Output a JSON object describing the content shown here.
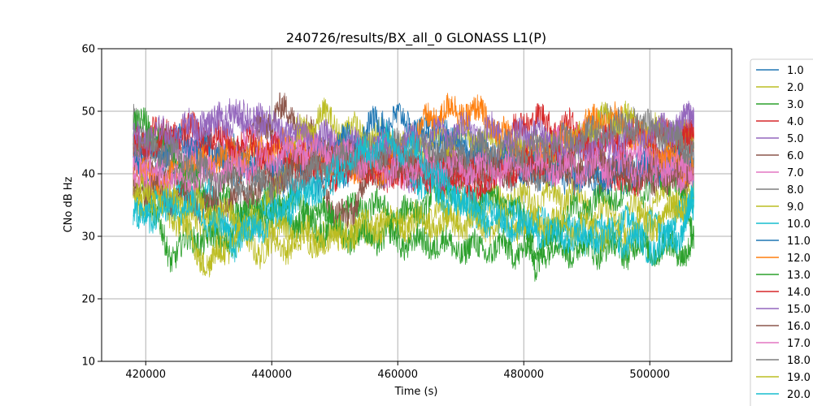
{
  "chart_data": {
    "type": "line",
    "title": "240726/results/BX_all_0 GLONASS L1(P)",
    "xlabel": "Time (s)",
    "ylabel": "CNo dB Hz",
    "xlim": [
      413000,
      513000
    ],
    "ylim": [
      10,
      60
    ],
    "xticks": [
      420000,
      440000,
      460000,
      480000,
      500000
    ],
    "yticks": [
      10,
      20,
      30,
      40,
      50,
      60
    ],
    "grid": true,
    "legend_position": "right-outside",
    "series": [
      {
        "name": "1.0",
        "color": "#1f77b4",
        "x": [
          418000,
          424000,
          430000,
          436000,
          442000,
          448000,
          454000,
          460000,
          466000,
          472000,
          478000,
          484000,
          490000,
          496000,
          502000,
          507000
        ],
        "y": [
          40,
          41,
          43,
          40,
          38,
          39,
          42,
          45,
          47,
          44,
          41,
          40,
          39,
          40,
          41,
          42
        ]
      },
      {
        "name": "2.0",
        "color": "#bcbd22",
        "x": [
          418000,
          423000,
          428000,
          433000,
          438000,
          443000,
          448000,
          453000,
          458000,
          463000,
          468000,
          473000,
          478000,
          483000,
          488000,
          493000,
          498000,
          503000,
          507000
        ],
        "y": [
          36,
          37,
          33,
          30,
          28,
          29,
          30,
          31,
          32,
          33,
          34,
          35,
          36,
          36,
          37,
          33,
          34,
          37,
          35
        ]
      },
      {
        "name": "3.0",
        "color": "#2ca02c",
        "x": [
          418000,
          421000,
          424000,
          428000,
          432000,
          436000,
          440000,
          444000,
          448000,
          452000,
          456000,
          460000,
          464000,
          468000,
          472000,
          476000,
          480000,
          482000,
          485000,
          490000,
          495000,
          500000,
          504000,
          507000
        ],
        "y": [
          47,
          34,
          27,
          30,
          29,
          33,
          36,
          35,
          33,
          34,
          35,
          33,
          35,
          38,
          37,
          36,
          33,
          25,
          32,
          35,
          37,
          38,
          40,
          30
        ]
      },
      {
        "name": "4.0",
        "color": "#d62728",
        "x": [
          418000,
          422000,
          426000,
          430000,
          434000,
          438000,
          442000,
          446000,
          450000,
          454000,
          458000,
          462000,
          466000,
          470000,
          474000,
          477000,
          480000,
          484000,
          488000,
          492000,
          496000,
          500000,
          504000,
          507000
        ],
        "y": [
          45,
          46,
          46,
          44,
          42,
          41,
          40,
          41,
          40,
          41,
          40,
          40,
          40,
          39,
          37,
          44,
          49,
          48,
          47,
          42,
          38,
          41,
          44,
          46
        ]
      },
      {
        "name": "5.0",
        "color": "#9467bd",
        "x": [
          418000,
          422000,
          426000,
          430000,
          434000,
          438000,
          442000,
          446000,
          450000,
          454000,
          458000,
          462000,
          466000,
          470000,
          474000,
          478000,
          482000,
          486000,
          490000,
          494000,
          498000,
          502000,
          505000,
          507000
        ],
        "y": [
          45,
          44,
          44,
          48,
          49,
          48,
          46,
          45,
          44,
          42,
          41,
          40,
          40,
          41,
          42,
          45,
          46,
          45,
          44,
          42,
          41,
          44,
          47,
          49
        ]
      },
      {
        "name": "6.0",
        "color": "#8c564b",
        "x": [
          418000,
          422000,
          426000,
          430000,
          434000,
          438000,
          441000,
          444000,
          447000,
          450000,
          453000,
          456000,
          460000,
          464000,
          468000,
          472000,
          476000,
          480000,
          484000,
          488000,
          492000,
          496000,
          500000,
          504000,
          507000
        ],
        "y": [
          42,
          40,
          38,
          35,
          40,
          47,
          50,
          49,
          45,
          32,
          35,
          40,
          41,
          41,
          42,
          42,
          42,
          41,
          41,
          40,
          40,
          40,
          39,
          40,
          40
        ]
      },
      {
        "name": "7.0",
        "color": "#e377c2",
        "x": [
          418000,
          420000,
          422000,
          425000,
          428000,
          432000,
          436000,
          440000,
          444000,
          448000,
          452000,
          456000,
          460000,
          464000,
          468000,
          472000,
          476000,
          480000,
          484000,
          488000,
          492000,
          496000,
          500000,
          504000,
          507000
        ],
        "y": [
          42,
          38,
          41,
          43,
          42,
          44,
          45,
          44,
          45,
          44,
          43,
          42,
          41,
          40,
          40,
          40,
          41,
          42,
          44,
          46,
          45,
          44,
          41,
          40,
          41
        ]
      },
      {
        "name": "8.0",
        "color": "#7f7f7f",
        "x": [
          418000,
          421000,
          424000,
          428000,
          432000,
          436000,
          440000,
          444000,
          448000,
          452000,
          456000,
          460000,
          464000,
          468000,
          472000,
          476000,
          480000,
          484000,
          488000,
          492000,
          496000,
          500000,
          504000,
          507000
        ],
        "y": [
          48,
          45,
          41,
          40,
          42,
          41,
          40,
          41,
          42,
          44,
          43,
          42,
          41,
          41,
          40,
          40,
          40,
          41,
          44,
          48,
          48,
          47,
          45,
          42
        ]
      },
      {
        "name": "9.0",
        "color": "#bcbd22",
        "x": [
          418000,
          421000,
          424000,
          427000,
          430000,
          432000,
          436000,
          440000,
          444000,
          448000,
          452000,
          456000,
          460000,
          464000,
          468000,
          472000,
          476000,
          480000,
          484000,
          488000,
          492000,
          496000,
          500000,
          504000,
          507000
        ],
        "y": [
          35,
          37,
          34,
          30,
          25,
          28,
          31,
          36,
          46,
          49,
          47,
          46,
          45,
          45,
          46,
          46,
          45,
          44,
          44,
          45,
          48,
          49,
          47,
          46,
          45
        ]
      },
      {
        "name": "10.0",
        "color": "#17becf",
        "x": [
          418000,
          422000,
          426000,
          430000,
          434000,
          438000,
          442000,
          446000,
          450000,
          454000,
          458000,
          462000,
          466000,
          470000,
          474000,
          478000,
          482000,
          486000,
          490000,
          494000,
          498000,
          502000,
          505000,
          507000
        ],
        "y": [
          34,
          35,
          37,
          36,
          31,
          33,
          35,
          38,
          40,
          42,
          43,
          40,
          37,
          35,
          34,
          33,
          32,
          31,
          30,
          31,
          32,
          31,
          33,
          36
        ]
      },
      {
        "name": "11.0",
        "color": "#1f77b4",
        "x": [
          418000,
          422000,
          426000,
          430000,
          434000,
          438000,
          442000,
          446000,
          450000,
          454000,
          458000,
          462000,
          466000,
          470000,
          474000,
          478000,
          482000,
          486000,
          490000,
          494000,
          498000,
          502000,
          505000,
          507000
        ],
        "y": [
          43,
          44,
          45,
          44,
          43,
          42,
          42,
          43,
          44,
          46,
          49,
          48,
          46,
          44,
          43,
          42,
          41,
          41,
          40,
          40,
          41,
          41,
          42,
          42
        ]
      },
      {
        "name": "12.0",
        "color": "#ff7f0e",
        "x": [
          418000,
          422000,
          426000,
          430000,
          434000,
          438000,
          442000,
          446000,
          450000,
          454000,
          458000,
          462000,
          465000,
          468000,
          471000,
          474000,
          477000,
          480000,
          484000,
          488000,
          492000,
          496000,
          500000,
          504000,
          507000
        ],
        "y": [
          40,
          39,
          41,
          42,
          43,
          44,
          44,
          43,
          42,
          41,
          41,
          44,
          49,
          50,
          50,
          49,
          46,
          43,
          44,
          46,
          49,
          48,
          44,
          42,
          41
        ]
      },
      {
        "name": "13.0",
        "color": "#2ca02c",
        "x": [
          418000,
          422000,
          426000,
          430000,
          434000,
          438000,
          442000,
          446000,
          450000,
          454000,
          458000,
          462000,
          466000,
          470000,
          474000,
          478000,
          482000,
          486000,
          490000,
          494000,
          498000,
          502000,
          505000,
          507000
        ],
        "y": [
          48,
          47,
          40,
          36,
          35,
          34,
          33,
          32,
          31,
          30,
          30,
          29,
          29,
          28,
          28,
          28,
          28,
          28,
          28,
          28,
          28,
          28,
          28,
          28
        ]
      },
      {
        "name": "14.0",
        "color": "#d62728",
        "x": [
          418000,
          422000,
          426000,
          430000,
          434000,
          438000,
          442000,
          446000,
          450000,
          454000,
          458000,
          462000,
          466000,
          470000,
          474000,
          478000,
          482000,
          486000,
          490000,
          494000,
          498000,
          502000,
          505000,
          507000
        ],
        "y": [
          44,
          45,
          47,
          46,
          45,
          44,
          43,
          42,
          42,
          41,
          41,
          41,
          40,
          40,
          40,
          41,
          42,
          43,
          44,
          45,
          46,
          46,
          46,
          46
        ]
      },
      {
        "name": "15.0",
        "color": "#9467bd",
        "x": [
          418000,
          422000,
          426000,
          430000,
          434000,
          438000,
          442000,
          446000,
          450000,
          454000,
          458000,
          462000,
          466000,
          470000,
          474000,
          478000,
          482000,
          486000,
          490000,
          494000,
          498000,
          502000,
          505000,
          507000
        ],
        "y": [
          46,
          46,
          47,
          48,
          49,
          48,
          47,
          46,
          45,
          44,
          44,
          45,
          46,
          47,
          47,
          46,
          45,
          44,
          44,
          45,
          46,
          47,
          48,
          49
        ]
      },
      {
        "name": "16.0",
        "color": "#8c564b",
        "x": [
          418000,
          422000,
          426000,
          430000,
          434000,
          438000,
          442000,
          446000,
          450000,
          454000,
          458000,
          462000,
          466000,
          470000,
          474000,
          478000,
          482000,
          486000,
          490000,
          494000,
          498000,
          502000,
          505000,
          507000
        ],
        "y": [
          38,
          37,
          36,
          35,
          36,
          38,
          40,
          42,
          43,
          42,
          41,
          41,
          41,
          41,
          41,
          41,
          41,
          41,
          41,
          41,
          40,
          40,
          40,
          40
        ]
      },
      {
        "name": "17.0",
        "color": "#e377c2",
        "x": [
          418000,
          422000,
          426000,
          430000,
          434000,
          438000,
          442000,
          446000,
          450000,
          454000,
          458000,
          462000,
          466000,
          470000,
          474000,
          478000,
          482000,
          486000,
          490000,
          494000,
          498000,
          502000,
          505000,
          507000
        ],
        "y": [
          41,
          40,
          39,
          40,
          41,
          42,
          43,
          44,
          43,
          42,
          41,
          41,
          41,
          41,
          41,
          41,
          41,
          41,
          41,
          41,
          41,
          41,
          41,
          41
        ]
      },
      {
        "name": "18.0",
        "color": "#7f7f7f",
        "x": [
          418000,
          422000,
          426000,
          430000,
          434000,
          438000,
          442000,
          446000,
          450000,
          454000,
          458000,
          462000,
          466000,
          470000,
          474000,
          478000,
          482000,
          486000,
          490000,
          494000,
          498000,
          502000,
          505000,
          507000
        ],
        "y": [
          45,
          44,
          42,
          40,
          38,
          38,
          39,
          40,
          42,
          43,
          44,
          44,
          44,
          44,
          44,
          44,
          44,
          45,
          46,
          47,
          48,
          47,
          45,
          44
        ]
      },
      {
        "name": "19.0",
        "color": "#bcbd22",
        "x": [
          418000,
          422000,
          426000,
          430000,
          434000,
          438000,
          442000,
          446000,
          450000,
          454000,
          458000,
          462000,
          466000,
          470000,
          474000,
          478000,
          482000,
          486000,
          490000,
          494000,
          498000,
          502000,
          505000,
          507000
        ],
        "y": [
          37,
          36,
          35,
          34,
          33,
          32,
          31,
          30,
          30,
          31,
          32,
          32,
          32,
          32,
          32,
          32,
          32,
          32,
          31,
          30,
          31,
          33,
          35,
          36
        ]
      },
      {
        "name": "20.0",
        "color": "#17becf",
        "x": [
          418000,
          422000,
          426000,
          430000,
          434000,
          438000,
          442000,
          446000,
          450000,
          454000,
          458000,
          462000,
          466000,
          470000,
          474000,
          478000,
          482000,
          486000,
          490000,
          494000,
          498000,
          502000,
          505000,
          507000
        ],
        "y": [
          33,
          34,
          35,
          33,
          29,
          32,
          34,
          37,
          40,
          43,
          45,
          44,
          40,
          36,
          33,
          32,
          31,
          30,
          30,
          30,
          29,
          28,
          31,
          36
        ]
      }
    ]
  }
}
